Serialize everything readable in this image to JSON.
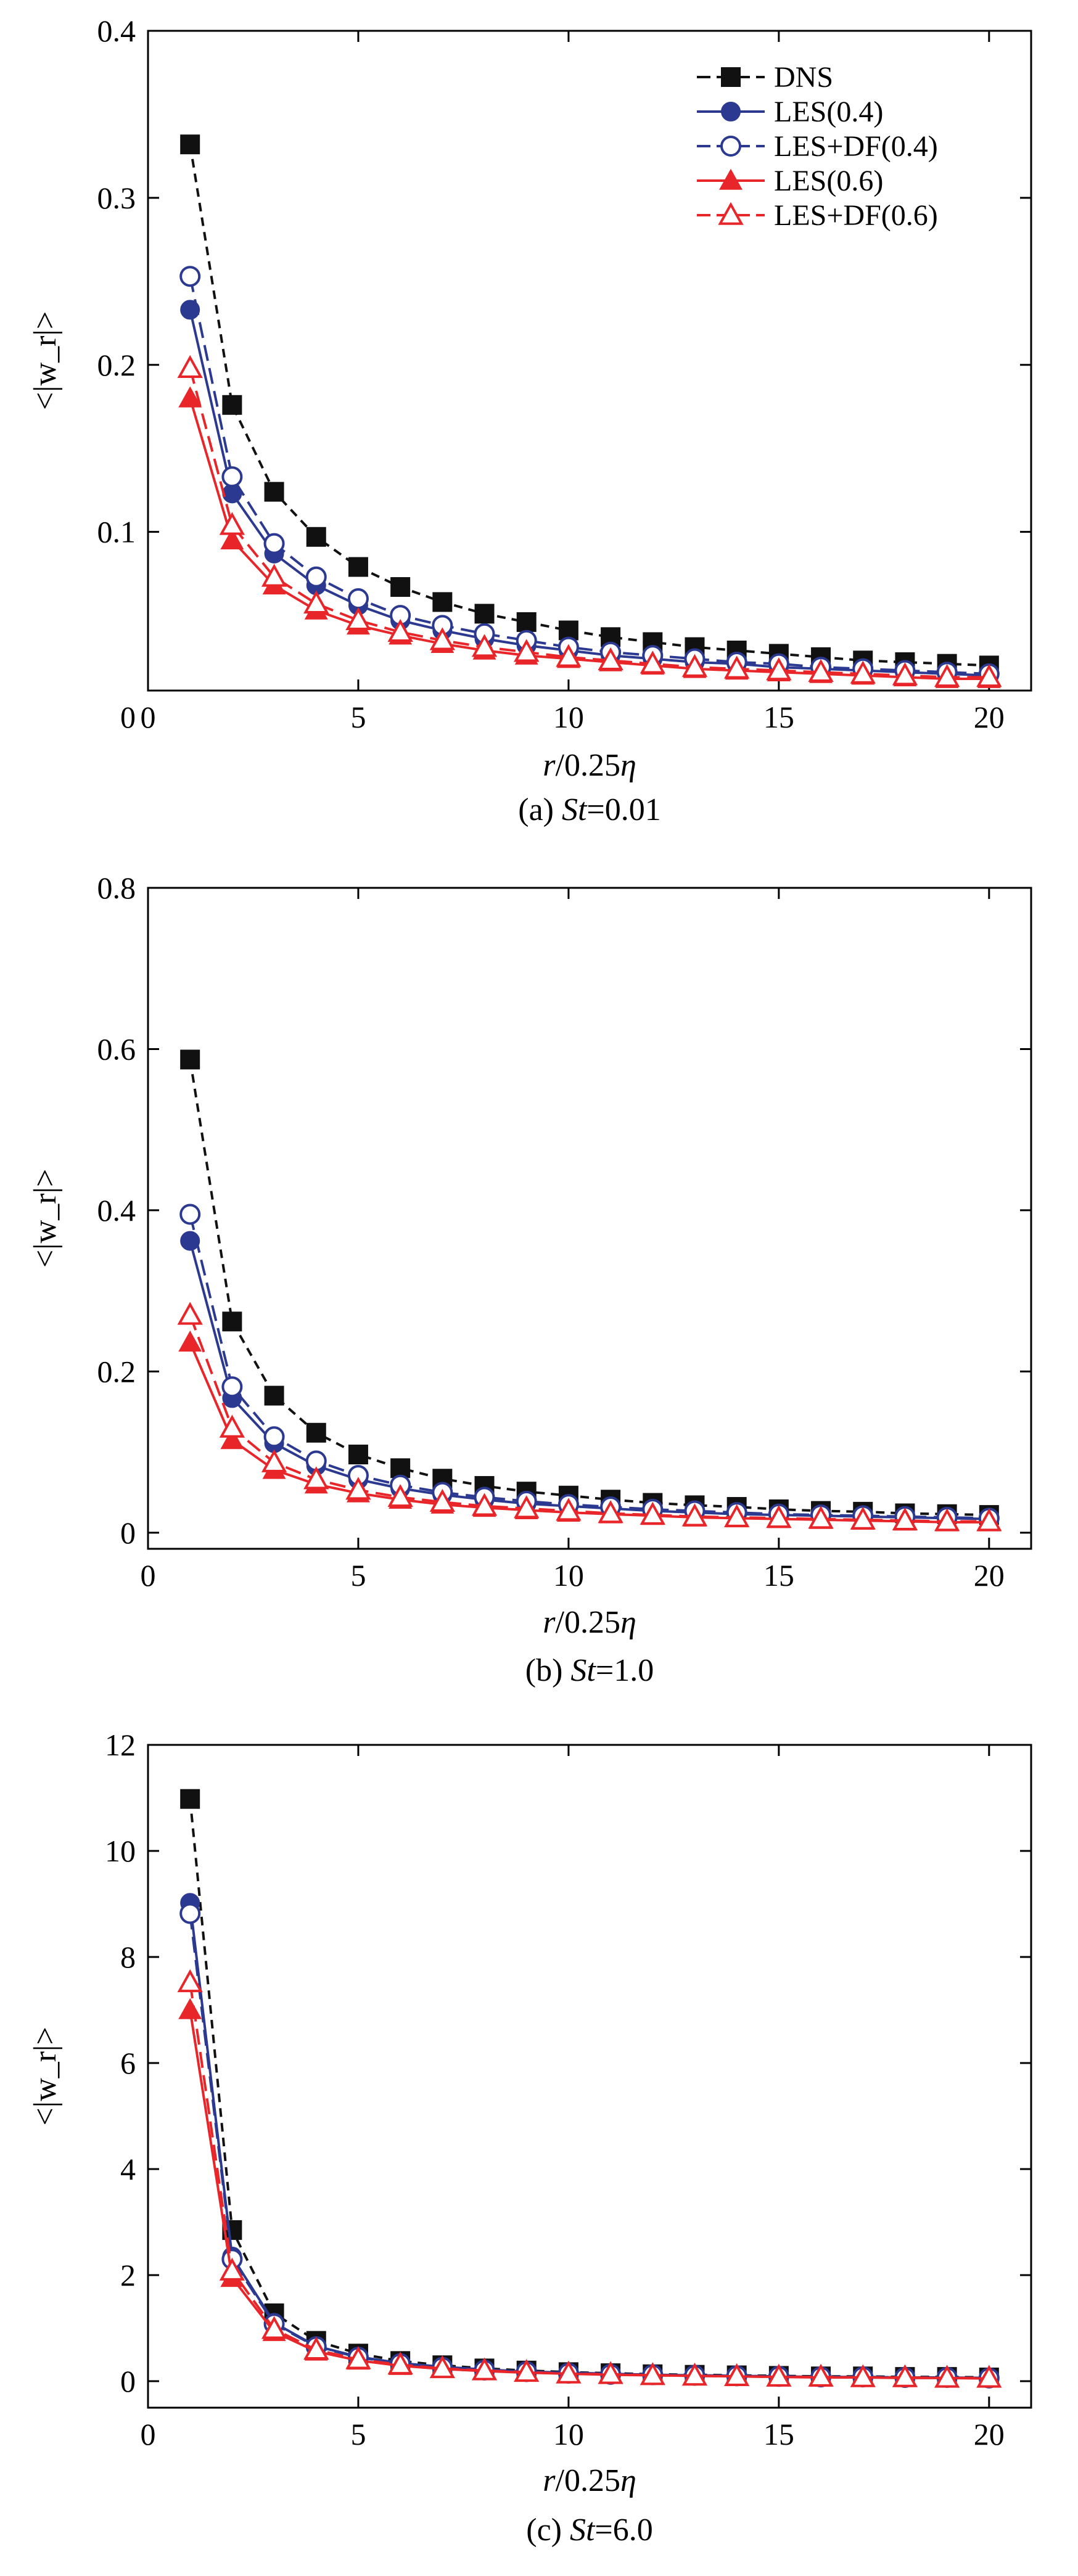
{
  "figure": {
    "panels": [
      {
        "caption_prefix": "(a) ",
        "caption_st": "St",
        "caption_value": "=0.01"
      },
      {
        "caption_prefix": "(b) ",
        "caption_st": "St",
        "caption_value": "=1.0"
      },
      {
        "caption_prefix": "(c) ",
        "caption_st": "St",
        "caption_value": "=6.0"
      }
    ],
    "colors": {
      "dns": "#111111",
      "les04": "#2b3990",
      "les06": "#e8262a"
    }
  },
  "chart_data": [
    {
      "type": "line",
      "xlabel_r": "r",
      "xlabel_mid": "/0.25",
      "xlabel_eta": "η",
      "ylabel": "<|w_r|>",
      "xlim": [
        0,
        21
      ],
      "ylim": [
        0.005,
        0.4
      ],
      "xticks": [
        0,
        5,
        10,
        15,
        20
      ],
      "yticks": [
        0.1,
        0.2,
        0.3,
        0.4
      ],
      "ytick_labels": [
        "0.1",
        "0.2",
        "0.3",
        "0.4"
      ],
      "legend": {
        "position": "top-right"
      },
      "x": [
        1,
        2,
        3,
        4,
        5,
        6,
        7,
        8,
        9,
        10,
        11,
        12,
        13,
        14,
        15,
        16,
        17,
        18,
        19,
        20
      ],
      "series": [
        {
          "name": "DNS",
          "values": [
            0.332,
            0.176,
            0.124,
            0.097,
            0.079,
            0.067,
            0.058,
            0.051,
            0.046,
            0.041,
            0.037,
            0.034,
            0.031,
            0.029,
            0.027,
            0.025,
            0.023,
            0.022,
            0.021,
            0.02
          ]
        },
        {
          "name": "LES(0.4)",
          "values": [
            0.233,
            0.123,
            0.087,
            0.068,
            0.056,
            0.047,
            0.041,
            0.036,
            0.032,
            0.029,
            0.026,
            0.024,
            0.022,
            0.021,
            0.019,
            0.018,
            0.017,
            0.016,
            0.015,
            0.014
          ]
        },
        {
          "name": "LES+DF(0.4)",
          "values": [
            0.253,
            0.133,
            0.093,
            0.073,
            0.06,
            0.05,
            0.044,
            0.039,
            0.035,
            0.031,
            0.028,
            0.026,
            0.024,
            0.022,
            0.021,
            0.019,
            0.018,
            0.017,
            0.016,
            0.015
          ]
        },
        {
          "name": "LES(0.6)",
          "values": [
            0.18,
            0.095,
            0.068,
            0.053,
            0.044,
            0.038,
            0.033,
            0.029,
            0.026,
            0.024,
            0.022,
            0.02,
            0.018,
            0.017,
            0.016,
            0.015,
            0.014,
            0.013,
            0.012,
            0.012
          ]
        },
        {
          "name": "LES+DF(0.6)",
          "values": [
            0.198,
            0.104,
            0.073,
            0.057,
            0.047,
            0.04,
            0.035,
            0.031,
            0.028,
            0.025,
            0.023,
            0.021,
            0.019,
            0.018,
            0.017,
            0.016,
            0.015,
            0.014,
            0.013,
            0.013
          ]
        }
      ]
    },
    {
      "type": "line",
      "xlabel_r": "r",
      "xlabel_mid": "/0.25",
      "xlabel_eta": "η",
      "ylabel": "<|w_r|>",
      "xlim": [
        0,
        21
      ],
      "ylim": [
        -0.02,
        0.8
      ],
      "xticks": [
        0,
        5,
        10,
        15,
        20
      ],
      "yticks": [
        0,
        0.2,
        0.4,
        0.6,
        0.8
      ],
      "ytick_labels": [
        "0",
        "0.2",
        "0.4",
        "0.6",
        "0.8"
      ],
      "x": [
        1,
        2,
        3,
        4,
        5,
        6,
        7,
        8,
        9,
        10,
        11,
        12,
        13,
        14,
        15,
        16,
        17,
        18,
        19,
        20
      ],
      "series": [
        {
          "name": "DNS",
          "values": [
            0.587,
            0.262,
            0.17,
            0.124,
            0.097,
            0.08,
            0.067,
            0.058,
            0.051,
            0.046,
            0.041,
            0.037,
            0.034,
            0.032,
            0.029,
            0.027,
            0.026,
            0.024,
            0.023,
            0.022
          ]
        },
        {
          "name": "LES(0.4)",
          "values": [
            0.362,
            0.167,
            0.111,
            0.083,
            0.066,
            0.055,
            0.047,
            0.041,
            0.036,
            0.033,
            0.03,
            0.027,
            0.025,
            0.023,
            0.022,
            0.021,
            0.02,
            0.019,
            0.018,
            0.017
          ]
        },
        {
          "name": "LES+DF(0.4)",
          "values": [
            0.395,
            0.181,
            0.119,
            0.089,
            0.071,
            0.059,
            0.05,
            0.044,
            0.039,
            0.035,
            0.032,
            0.029,
            0.027,
            0.025,
            0.023,
            0.022,
            0.021,
            0.02,
            0.019,
            0.018
          ]
        },
        {
          "name": "LES(0.6)",
          "values": [
            0.236,
            0.115,
            0.078,
            0.06,
            0.049,
            0.041,
            0.035,
            0.031,
            0.028,
            0.025,
            0.023,
            0.021,
            0.019,
            0.018,
            0.017,
            0.016,
            0.015,
            0.014,
            0.013,
            0.013
          ]
        },
        {
          "name": "LES+DF(0.6)",
          "values": [
            0.27,
            0.13,
            0.087,
            0.066,
            0.053,
            0.044,
            0.038,
            0.033,
            0.03,
            0.027,
            0.024,
            0.022,
            0.02,
            0.019,
            0.018,
            0.017,
            0.016,
            0.015,
            0.014,
            0.014
          ]
        }
      ]
    },
    {
      "type": "line",
      "xlabel_r": "r",
      "xlabel_mid": "/0.25",
      "xlabel_eta": "η",
      "ylabel": "<|w_r|>",
      "xlim": [
        0,
        21
      ],
      "ylim": [
        -0.5,
        12
      ],
      "xticks": [
        0,
        5,
        10,
        15,
        20
      ],
      "yticks": [
        0,
        2,
        4,
        6,
        8,
        10,
        12
      ],
      "ytick_labels": [
        "0",
        "2",
        "4",
        "6",
        "8",
        "10",
        "12"
      ],
      "x": [
        1,
        2,
        3,
        4,
        5,
        6,
        7,
        8,
        9,
        10,
        11,
        12,
        13,
        14,
        15,
        16,
        17,
        18,
        19,
        20
      ],
      "series": [
        {
          "name": "DNS",
          "values": [
            10.98,
            2.85,
            1.28,
            0.76,
            0.52,
            0.38,
            0.3,
            0.24,
            0.2,
            0.17,
            0.15,
            0.13,
            0.12,
            0.11,
            0.1,
            0.09,
            0.09,
            0.08,
            0.08,
            0.07
          ]
        },
        {
          "name": "LES(0.4)",
          "values": [
            9.02,
            2.35,
            1.1,
            0.66,
            0.46,
            0.34,
            0.27,
            0.22,
            0.18,
            0.16,
            0.14,
            0.12,
            0.11,
            0.1,
            0.09,
            0.08,
            0.08,
            0.07,
            0.07,
            0.06
          ]
        },
        {
          "name": "LES+DF(0.4)",
          "values": [
            8.82,
            2.3,
            1.08,
            0.65,
            0.45,
            0.33,
            0.26,
            0.21,
            0.18,
            0.15,
            0.13,
            0.12,
            0.11,
            0.1,
            0.09,
            0.08,
            0.08,
            0.07,
            0.07,
            0.06
          ]
        },
        {
          "name": "LES(0.6)",
          "values": [
            7.0,
            1.95,
            0.93,
            0.56,
            0.39,
            0.29,
            0.23,
            0.19,
            0.16,
            0.14,
            0.12,
            0.11,
            0.1,
            0.09,
            0.08,
            0.07,
            0.07,
            0.06,
            0.06,
            0.05
          ]
        },
        {
          "name": "LES+DF(0.6)",
          "values": [
            7.52,
            2.08,
            0.98,
            0.59,
            0.41,
            0.31,
            0.24,
            0.2,
            0.17,
            0.14,
            0.13,
            0.11,
            0.1,
            0.09,
            0.08,
            0.08,
            0.07,
            0.07,
            0.06,
            0.06
          ]
        }
      ]
    }
  ]
}
